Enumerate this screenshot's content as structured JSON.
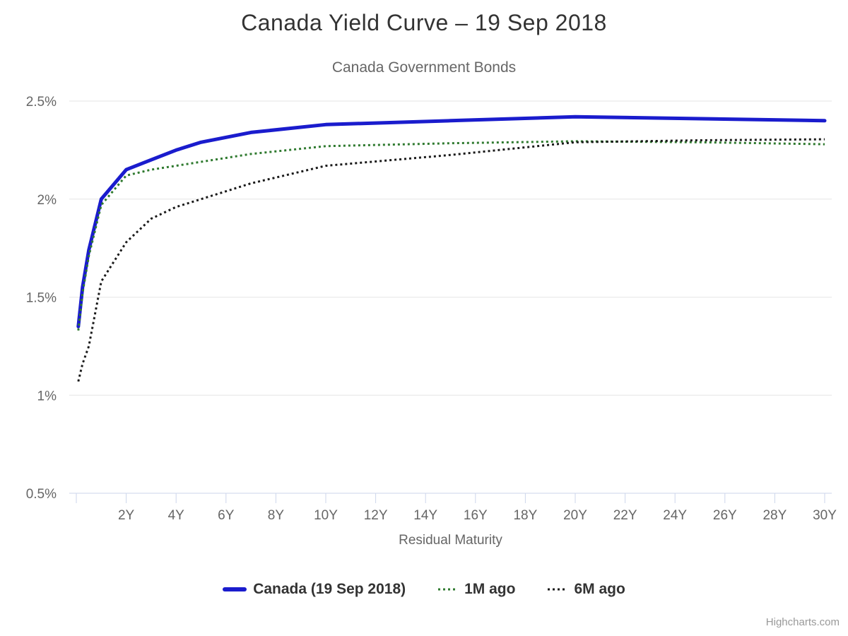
{
  "chart_data": {
    "type": "line",
    "title": "Canada Yield Curve – 19 Sep 2018",
    "subtitle": "Canada Government Bonds",
    "xlabel": "Residual Maturity",
    "ylabel": "",
    "x_unit": "years",
    "xlim": [
      0,
      30
    ],
    "ylim": [
      0.5,
      2.5
    ],
    "grid": true,
    "legend_position": "bottom",
    "y_ticks": [
      0.5,
      1,
      1.5,
      2,
      2.5
    ],
    "y_tick_labels": [
      "0.5%",
      "1%",
      "1.5%",
      "2%",
      "2.5%"
    ],
    "x_ticks": [
      0,
      2,
      4,
      6,
      8,
      10,
      12,
      14,
      16,
      18,
      20,
      22,
      24,
      26,
      28,
      30
    ],
    "x_tick_labels": [
      "",
      "2Y",
      "4Y",
      "6Y",
      "8Y",
      "10Y",
      "12Y",
      "14Y",
      "16Y",
      "18Y",
      "20Y",
      "22Y",
      "24Y",
      "26Y",
      "28Y",
      "30Y"
    ],
    "series": [
      {
        "name": "Canada (19 Sep 2018)",
        "color": "#1a1ccd",
        "style": "solid",
        "points": [
          [
            0.08,
            1.35
          ],
          [
            0.25,
            1.55
          ],
          [
            0.5,
            1.74
          ],
          [
            1,
            2.0
          ],
          [
            2,
            2.15
          ],
          [
            3,
            2.2
          ],
          [
            4,
            2.25
          ],
          [
            5,
            2.29
          ],
          [
            7,
            2.34
          ],
          [
            10,
            2.38
          ],
          [
            15,
            2.4
          ],
          [
            20,
            2.42
          ],
          [
            30,
            2.4
          ]
        ]
      },
      {
        "name": "1M ago",
        "color": "#2f7a2f",
        "style": "dotted",
        "points": [
          [
            0.08,
            1.33
          ],
          [
            0.25,
            1.52
          ],
          [
            0.5,
            1.71
          ],
          [
            1,
            1.97
          ],
          [
            2,
            2.12
          ],
          [
            3,
            2.15
          ],
          [
            4,
            2.17
          ],
          [
            5,
            2.19
          ],
          [
            7,
            2.23
          ],
          [
            10,
            2.27
          ],
          [
            15,
            2.285
          ],
          [
            20,
            2.295
          ],
          [
            25,
            2.29
          ],
          [
            30,
            2.28
          ]
        ]
      },
      {
        "name": "6M ago",
        "color": "#1a1a1a",
        "style": "dotted",
        "points": [
          [
            0.08,
            1.07
          ],
          [
            0.25,
            1.16
          ],
          [
            0.5,
            1.25
          ],
          [
            1,
            1.58
          ],
          [
            2,
            1.78
          ],
          [
            3,
            1.9
          ],
          [
            4,
            1.96
          ],
          [
            5,
            2.0
          ],
          [
            7,
            2.08
          ],
          [
            10,
            2.17
          ],
          [
            15,
            2.225
          ],
          [
            20,
            2.29
          ],
          [
            25,
            2.3
          ],
          [
            30,
            2.305
          ]
        ]
      }
    ],
    "credits": "Highcharts.com"
  },
  "colors": {
    "gridline": "#e6e6e6",
    "axis_line": "#ccd6eb",
    "axis_label": "#666666",
    "title": "#333333",
    "subtitle": "#666666",
    "legend_text": "#333333",
    "credits": "#999999"
  }
}
